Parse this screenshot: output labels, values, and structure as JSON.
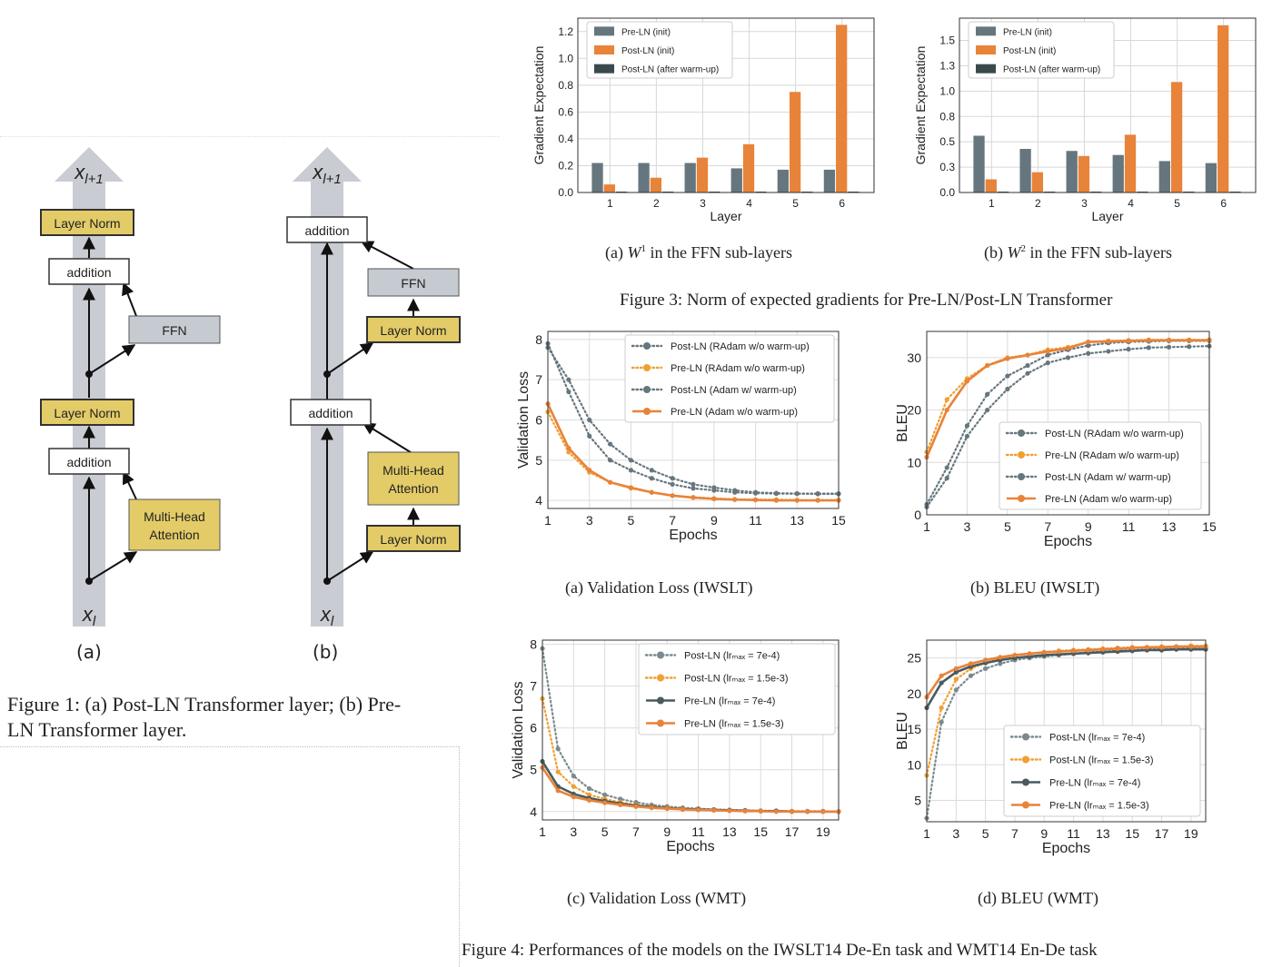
{
  "figure1": {
    "panel_a": {
      "out_label": "x_{l+1}",
      "in_label": "x_l",
      "top_norm": "Layer Norm",
      "addition_top": "addition",
      "ffn": "FFN",
      "mid_norm": "Layer Norm",
      "addition_bottom": "addition",
      "attention_line1": "Multi-Head",
      "attention_line2": "Attention",
      "letter": "(a)"
    },
    "panel_b": {
      "out_label": "x_{l+1}",
      "in_label": "x_l",
      "addition_top": "addition",
      "ffn": "FFN",
      "norm_ffn": "Layer Norm",
      "addition_bottom": "addition",
      "attention_line1": "Multi-Head",
      "attention_line2": "Attention",
      "norm_att": "Layer Norm",
      "letter": "(b)"
    },
    "caption_line1": "Figure 1: (a) Post-LN Transformer layer; (b) Pre-",
    "caption_line2": "LN Transformer layer."
  },
  "figure3": {
    "caption": "Figure 3: Norm of expected gradients for Pre-LN/Post-LN Transformer",
    "sub_a": {
      "prefix": "(a)",
      "var": "W",
      "sup": "1",
      "rest": "in the FFN sub-layers"
    },
    "sub_b": {
      "prefix": "(b)",
      "var": "W",
      "sup": "2",
      "rest": "in the FFN sub-layers"
    }
  },
  "figure4": {
    "caption": "Figure 4: Performances of the models on the IWSLT14 De-En task and WMT14 En-De task",
    "sub_a": "(a)  Validation Loss (IWSLT)",
    "sub_b": "(b)  BLEU (IWSLT)",
    "sub_c": "(c)  Validation Loss (WMT)",
    "sub_d": "(d)  BLEU (WMT)"
  },
  "colors": {
    "gray": "#66767e",
    "orange": "#e8833a",
    "dark": "#3a4a4c",
    "yellow": "#e3cc68",
    "grayBox": "#c6cbd1"
  },
  "chart_data": [
    {
      "id": "fig3a",
      "type": "bar",
      "xlabel": "Layer",
      "ylabel": "Gradient Expectation",
      "categories": [
        "1",
        "2",
        "3",
        "4",
        "5",
        "6"
      ],
      "ylim": [
        0,
        1.3
      ],
      "yticks": [
        0.0,
        0.2,
        0.4,
        0.6,
        0.8,
        1.0,
        1.2
      ],
      "series": [
        {
          "name": "Pre-LN (init)",
          "color": "#66767e",
          "values": [
            0.22,
            0.22,
            0.22,
            0.18,
            0.17,
            0.17
          ]
        },
        {
          "name": "Post-LN (init)",
          "color": "#e8833a",
          "values": [
            0.06,
            0.11,
            0.26,
            0.36,
            0.75,
            1.25
          ]
        },
        {
          "name": "Post-LN (after warm-up)",
          "color": "#3a4a4c",
          "values": [
            0.005,
            0.005,
            0.005,
            0.005,
            0.005,
            0.005
          ]
        }
      ],
      "legend": "top-left"
    },
    {
      "id": "fig3b",
      "type": "bar",
      "xlabel": "Layer",
      "ylabel": "Gradient Expectation",
      "categories": [
        "1",
        "2",
        "3",
        "4",
        "5",
        "6"
      ],
      "ylim": [
        0,
        1.72
      ],
      "yticks": [
        0.0,
        0.25,
        0.5,
        0.75,
        1.0,
        1.25,
        1.5
      ],
      "series": [
        {
          "name": "Pre-LN (init)",
          "color": "#66767e",
          "values": [
            0.56,
            0.43,
            0.41,
            0.37,
            0.31,
            0.29
          ]
        },
        {
          "name": "Post-LN (init)",
          "color": "#e8833a",
          "values": [
            0.13,
            0.2,
            0.36,
            0.57,
            1.09,
            1.65
          ]
        },
        {
          "name": "Post-LN (after warm-up)",
          "color": "#3a4a4c",
          "values": [
            0.008,
            0.008,
            0.008,
            0.008,
            0.008,
            0.008
          ]
        }
      ],
      "legend": "top-left"
    },
    {
      "id": "fig4a",
      "type": "line",
      "xlabel": "Epochs",
      "ylabel": "Validation Loss",
      "xlim": [
        1,
        15
      ],
      "ylim": [
        3.8,
        8.2
      ],
      "xticks": [
        1,
        3,
        5,
        7,
        9,
        11,
        13,
        15
      ],
      "yticks": [
        4,
        5,
        6,
        7,
        8
      ],
      "x": [
        1,
        2,
        3,
        4,
        5,
        6,
        7,
        8,
        9,
        10,
        11,
        12,
        13,
        14,
        15
      ],
      "series": [
        {
          "name": "Post-LN (RAdam w/o warm-up)",
          "color": "#66767e",
          "dotted": true,
          "values": [
            7.9,
            6.7,
            5.6,
            5.0,
            4.75,
            4.55,
            4.4,
            4.3,
            4.25,
            4.2,
            4.18,
            4.17,
            4.17,
            4.17,
            4.17
          ]
        },
        {
          "name": "Pre-LN (RAdam w/o warm-up)",
          "color": "#f0a030",
          "dotted": true,
          "values": [
            6.2,
            5.2,
            4.7,
            4.45,
            4.3,
            4.2,
            4.12,
            4.08,
            4.05,
            4.03,
            4.02,
            4.02,
            4.01,
            4.01,
            4.01
          ]
        },
        {
          "name": "Post-LN (Adam w/ warm-up)",
          "color": "#66767e",
          "dotted": true,
          "values": [
            7.8,
            7.0,
            6.0,
            5.4,
            5.0,
            4.75,
            4.55,
            4.4,
            4.32,
            4.25,
            4.2,
            4.18,
            4.17,
            4.16,
            4.16
          ]
        },
        {
          "name": "Pre-LN (Adam w/o warm-up)",
          "color": "#e8833a",
          "dotted": false,
          "values": [
            6.4,
            5.3,
            4.75,
            4.45,
            4.32,
            4.2,
            4.12,
            4.07,
            4.04,
            4.02,
            4.01,
            4.0,
            4.0,
            4.0,
            4.0
          ]
        }
      ],
      "legend": "top-right"
    },
    {
      "id": "fig4b",
      "type": "line",
      "xlabel": "Epochs",
      "ylabel": "BLEU",
      "xlim": [
        1,
        15
      ],
      "ylim": [
        0,
        35
      ],
      "xticks": [
        1,
        3,
        5,
        7,
        9,
        11,
        13,
        15
      ],
      "yticks": [
        0,
        10,
        20,
        30
      ],
      "x": [
        1,
        2,
        3,
        4,
        5,
        6,
        7,
        8,
        9,
        10,
        11,
        12,
        13,
        14,
        15
      ],
      "series": [
        {
          "name": "Post-LN (RAdam w/o warm-up)",
          "color": "#66767e",
          "dotted": true,
          "values": [
            2,
            9,
            17,
            23,
            26.5,
            28.5,
            30.5,
            31.5,
            32.3,
            32.8,
            33.0,
            33.1,
            33.2,
            33.2,
            33.2
          ]
        },
        {
          "name": "Pre-LN (RAdam w/o warm-up)",
          "color": "#f0a030",
          "dotted": true,
          "values": [
            12,
            22,
            26,
            28.5,
            30,
            30.5,
            31.5,
            32,
            33,
            33.2,
            33.3,
            33.4,
            33.4,
            33.4,
            33.4
          ]
        },
        {
          "name": "Post-LN (Adam w/ warm-up)",
          "color": "#66767e",
          "dotted": true,
          "values": [
            1.5,
            7,
            15,
            20,
            24,
            27,
            29,
            30,
            30.8,
            31.2,
            31.6,
            31.9,
            32.0,
            32.1,
            32.2
          ]
        },
        {
          "name": "Pre-LN (Adam w/o warm-up)",
          "color": "#e8833a",
          "dotted": false,
          "values": [
            11,
            20,
            25.5,
            28.5,
            29.8,
            30.5,
            31.2,
            31.8,
            33,
            33.1,
            33.2,
            33.3,
            33.3,
            33.3,
            33.3
          ]
        }
      ],
      "legend": "bottom-right"
    },
    {
      "id": "fig4c",
      "type": "line",
      "xlabel": "Epochs",
      "ylabel": "Validation Loss",
      "xlim": [
        1,
        20
      ],
      "ylim": [
        3.8,
        8.1
      ],
      "xticks": [
        1,
        3,
        5,
        7,
        9,
        11,
        13,
        15,
        17,
        19
      ],
      "yticks": [
        4,
        5,
        6,
        7,
        8
      ],
      "x": [
        1,
        2,
        3,
        4,
        5,
        6,
        7,
        8,
        9,
        10,
        11,
        12,
        13,
        14,
        15,
        16,
        17,
        18,
        19,
        20
      ],
      "series": [
        {
          "name": "Post-LN (lr_max = 7e-4)",
          "color": "#7a8a8e",
          "dotted": true,
          "values": [
            7.9,
            5.5,
            4.85,
            4.55,
            4.4,
            4.3,
            4.22,
            4.16,
            4.12,
            4.09,
            4.07,
            4.05,
            4.04,
            4.03,
            4.02,
            4.02,
            4.01,
            4.01,
            4.01,
            4.0
          ]
        },
        {
          "name": "Post-LN (lr_max = 1.5e-3)",
          "color": "#f0a030",
          "dotted": true,
          "values": [
            6.7,
            4.95,
            4.6,
            4.4,
            4.3,
            4.22,
            4.16,
            4.12,
            4.09,
            4.07,
            4.05,
            4.04,
            4.03,
            4.02,
            4.02,
            4.01,
            4.01,
            4.0,
            4.0,
            4.0
          ]
        },
        {
          "name": "Pre-LN (lr_max = 7e-4)",
          "color": "#4a5a5e",
          "dotted": false,
          "values": [
            5.2,
            4.6,
            4.42,
            4.32,
            4.25,
            4.19,
            4.14,
            4.11,
            4.08,
            4.06,
            4.05,
            4.04,
            4.03,
            4.02,
            4.01,
            4.01,
            4.0,
            4.0,
            4.0,
            4.0
          ]
        },
        {
          "name": "Pre-LN (lr_max = 1.5e-3)",
          "color": "#e8833a",
          "dotted": false,
          "values": [
            5.05,
            4.5,
            4.35,
            4.27,
            4.21,
            4.16,
            4.12,
            4.09,
            4.07,
            4.05,
            4.04,
            4.03,
            4.02,
            4.01,
            4.01,
            4.0,
            4.0,
            4.0,
            4.0,
            4.0
          ]
        }
      ],
      "legend": "top-right"
    },
    {
      "id": "fig4d",
      "type": "line",
      "xlabel": "Epochs",
      "ylabel": "BLEU",
      "xlim": [
        1,
        20
      ],
      "ylim": [
        2,
        27.5
      ],
      "xticks": [
        1,
        3,
        5,
        7,
        9,
        11,
        13,
        15,
        17,
        19
      ],
      "yticks": [
        5,
        10,
        15,
        20,
        25
      ],
      "x": [
        1,
        2,
        3,
        4,
        5,
        6,
        7,
        8,
        9,
        10,
        11,
        12,
        13,
        14,
        15,
        16,
        17,
        18,
        19,
        20
      ],
      "series": [
        {
          "name": "Post-LN (lr_max = 7e-4)",
          "color": "#7a8a8e",
          "dotted": true,
          "values": [
            2.5,
            16,
            20.5,
            22.5,
            23.5,
            24.2,
            24.7,
            25.0,
            25.2,
            25.4,
            25.6,
            25.8,
            25.9,
            26.0,
            26.1,
            26.2,
            26.3,
            26.3,
            26.4,
            26.4
          ]
        },
        {
          "name": "Post-LN (lr_max = 1.5e-3)",
          "color": "#f0a030",
          "dotted": true,
          "values": [
            8.5,
            18,
            22,
            23.5,
            24.3,
            24.9,
            25.3,
            25.6,
            25.8,
            26.0,
            26.1,
            26.2,
            26.3,
            26.4,
            26.5,
            26.5,
            26.6,
            26.6,
            26.7,
            26.7
          ]
        },
        {
          "name": "Pre-LN (lr_max = 7e-4)",
          "color": "#4a5a5e",
          "dotted": false,
          "values": [
            18,
            21.5,
            23,
            23.8,
            24.3,
            24.7,
            25.0,
            25.2,
            25.4,
            25.5,
            25.6,
            25.7,
            25.8,
            25.9,
            26.0,
            26.1,
            26.1,
            26.2,
            26.2,
            26.2
          ]
        },
        {
          "name": "Pre-LN (lr_max = 1.5e-3)",
          "color": "#e8833a",
          "dotted": false,
          "values": [
            19.5,
            22.5,
            23.5,
            24.2,
            24.7,
            25.1,
            25.4,
            25.6,
            25.8,
            25.9,
            26.0,
            26.1,
            26.2,
            26.3,
            26.4,
            26.5,
            26.5,
            26.6,
            26.6,
            26.6
          ]
        }
      ],
      "legend": "bottom-right"
    }
  ]
}
